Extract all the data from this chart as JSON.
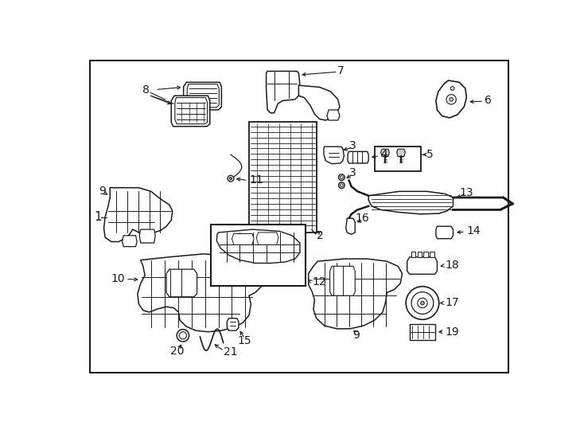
{
  "bg": "#ffffff",
  "lc": "#1a1a1a",
  "border": [
    25,
    15,
    708,
    523
  ],
  "figsize": [
    7.34,
    5.4
  ],
  "dpi": 100
}
